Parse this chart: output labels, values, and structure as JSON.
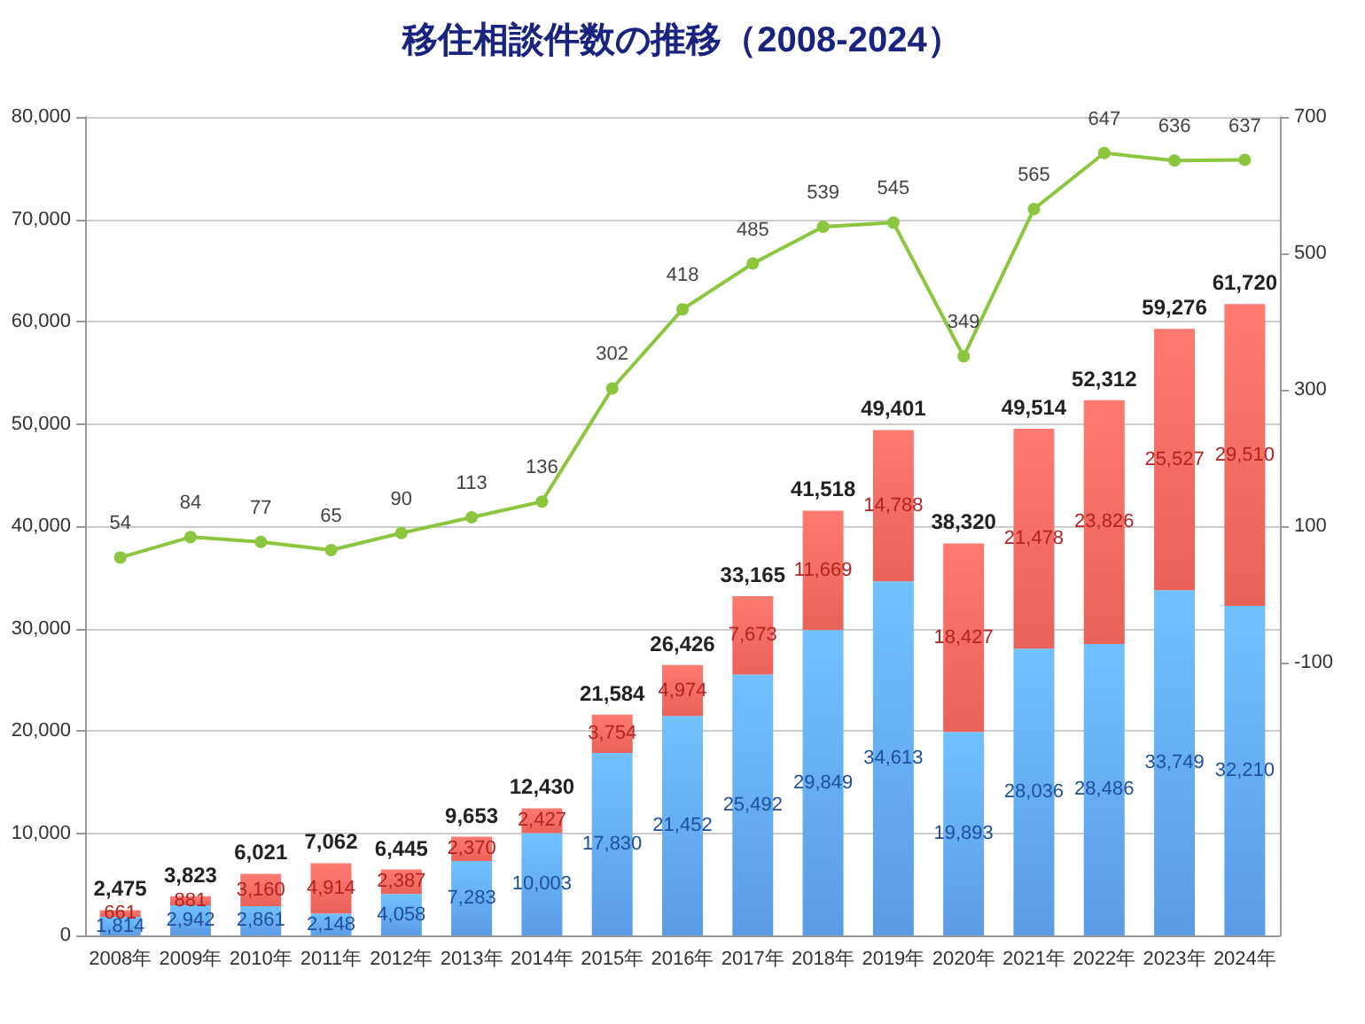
{
  "chart_data": {
    "type": "bar",
    "title": "移住相談件数の推移（2008-2024）",
    "categories": [
      "2008年",
      "2009年",
      "2010年",
      "2011年",
      "2012年",
      "2013年",
      "2014年",
      "2015年",
      "2016年",
      "2017年",
      "2018年",
      "2019年",
      "2020年",
      "2021年",
      "2022年",
      "2023年",
      "2024年"
    ],
    "stacked": true,
    "grid": "y",
    "series": [
      {
        "color": "#5b9be6",
        "values": [
          1814,
          2942,
          2861,
          2148,
          4058,
          7283,
          10003,
          17830,
          21452,
          25492,
          29849,
          34613,
          19893,
          28036,
          28486,
          33749,
          32210
        ],
        "value_labels": [
          "1,814",
          "2,942",
          "2,861",
          "2,148",
          "4,058",
          "7,283",
          "10,003",
          "17,830",
          "21,452",
          "25,492",
          "29,849",
          "34,613",
          "19,893",
          "28,036",
          "28,486",
          "33,749",
          "32,210"
        ]
      },
      {
        "color": "#e8625a",
        "values": [
          661,
          881,
          3160,
          4914,
          2387,
          2370,
          2427,
          3754,
          4974,
          7673,
          11669,
          14788,
          18427,
          21478,
          23826,
          25527,
          29510
        ],
        "value_labels": [
          "661",
          "881",
          "3,160",
          "4,914",
          "2,387",
          "2,370",
          "2,427",
          "3,754",
          "4,974",
          "7,673",
          "11,669",
          "14,788",
          "18,427",
          "21,478",
          "23,826",
          "25,527",
          "29,510"
        ]
      },
      {
        "type": "line",
        "axis": "y2",
        "color": "#8cc63f",
        "marker": "circle",
        "values": [
          54,
          84,
          77,
          65,
          90,
          113,
          136,
          302,
          418,
          485,
          539,
          545,
          349,
          565,
          647,
          636,
          637
        ],
        "value_labels": [
          "54",
          "84",
          "77",
          "65",
          "90",
          "113",
          "136",
          "302",
          "418",
          "485",
          "539",
          "545",
          "349",
          "565",
          "647",
          "636",
          "637"
        ]
      }
    ],
    "totals": [
      "2,475",
      "3,823",
      "6,021",
      "7,062",
      "6,445",
      "9,653",
      "12,430",
      "21,584",
      "26,426",
      "33,165",
      "41,518",
      "49,401",
      "38,320",
      "49,514",
      "52,312",
      "59,276",
      "61,720"
    ],
    "ylim": [
      0,
      80000
    ],
    "yticks": [
      0,
      {
        "value": 10000,
        "label": "10,000"
      },
      {
        "value": 20000,
        "label": "20,000"
      },
      {
        "value": 30000,
        "label": "30,000"
      },
      {
        "value": 40000,
        "label": "40,000"
      },
      {
        "value": 50000,
        "label": "50,000"
      },
      {
        "value": 60000,
        "label": "60,000"
      },
      {
        "value": 70000,
        "label": "70,000"
      },
      {
        "value": 80000,
        "label": "80,000"
      }
    ],
    "y2lim": [
      -500,
      700
    ],
    "y2ticks": [
      -100,
      100,
      300,
      500,
      700
    ]
  }
}
